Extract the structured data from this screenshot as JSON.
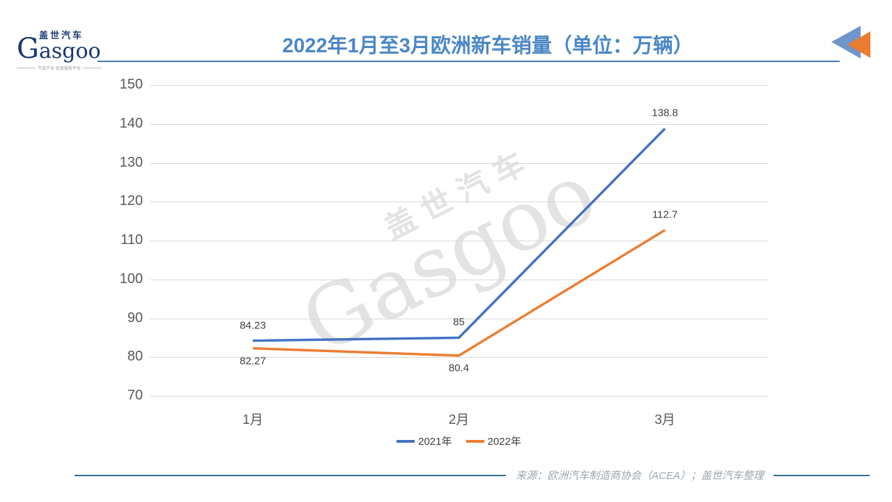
{
  "header": {
    "logo": {
      "cn": "盖世汽车",
      "en": "Gasgoo",
      "tagline": "汽车产业 信息服务平台"
    },
    "title": "2022年1月至3月欧洲新车销量（单位：万辆）"
  },
  "watermark": {
    "cn": "盖世汽车",
    "en": "Gasgoo"
  },
  "footer": {
    "source": "来源：欧洲汽车制造商协会（ACEA）；盖世汽车整理"
  },
  "colors": {
    "title_blue": "#4a87c6",
    "header_rule": "#4379ad",
    "footer_rule": "#2e7090",
    "grid": "#d9d9d9",
    "axis_text": "#595959",
    "label_text": "#404040",
    "logo_navy": "#16386e",
    "logo_red": "#c4272e",
    "triangle_blue": "#7096cb",
    "triangle_orange": "#ec7c30"
  },
  "chart_data": {
    "type": "line",
    "title": "2022年1月至3月欧洲新车销量（单位：万辆）",
    "categories": [
      "1月",
      "2月",
      "3月"
    ],
    "series": [
      {
        "name": "2021年",
        "color": "#4472c4",
        "values": [
          84.23,
          85,
          138.8
        ],
        "label_positions": [
          "above",
          "above",
          "above"
        ]
      },
      {
        "name": "2022年",
        "color": "#ed7d31",
        "values": [
          82.27,
          80.4,
          112.7
        ],
        "label_positions": [
          "below",
          "below",
          "above"
        ]
      }
    ],
    "xlabel": "",
    "ylabel": "",
    "ylim": [
      70,
      150
    ],
    "ytick_step": 10,
    "grid": "horizontal",
    "legend_position": "bottom",
    "source": "来源：欧洲汽车制造商协会（ACEA）；盖世汽车整理"
  }
}
